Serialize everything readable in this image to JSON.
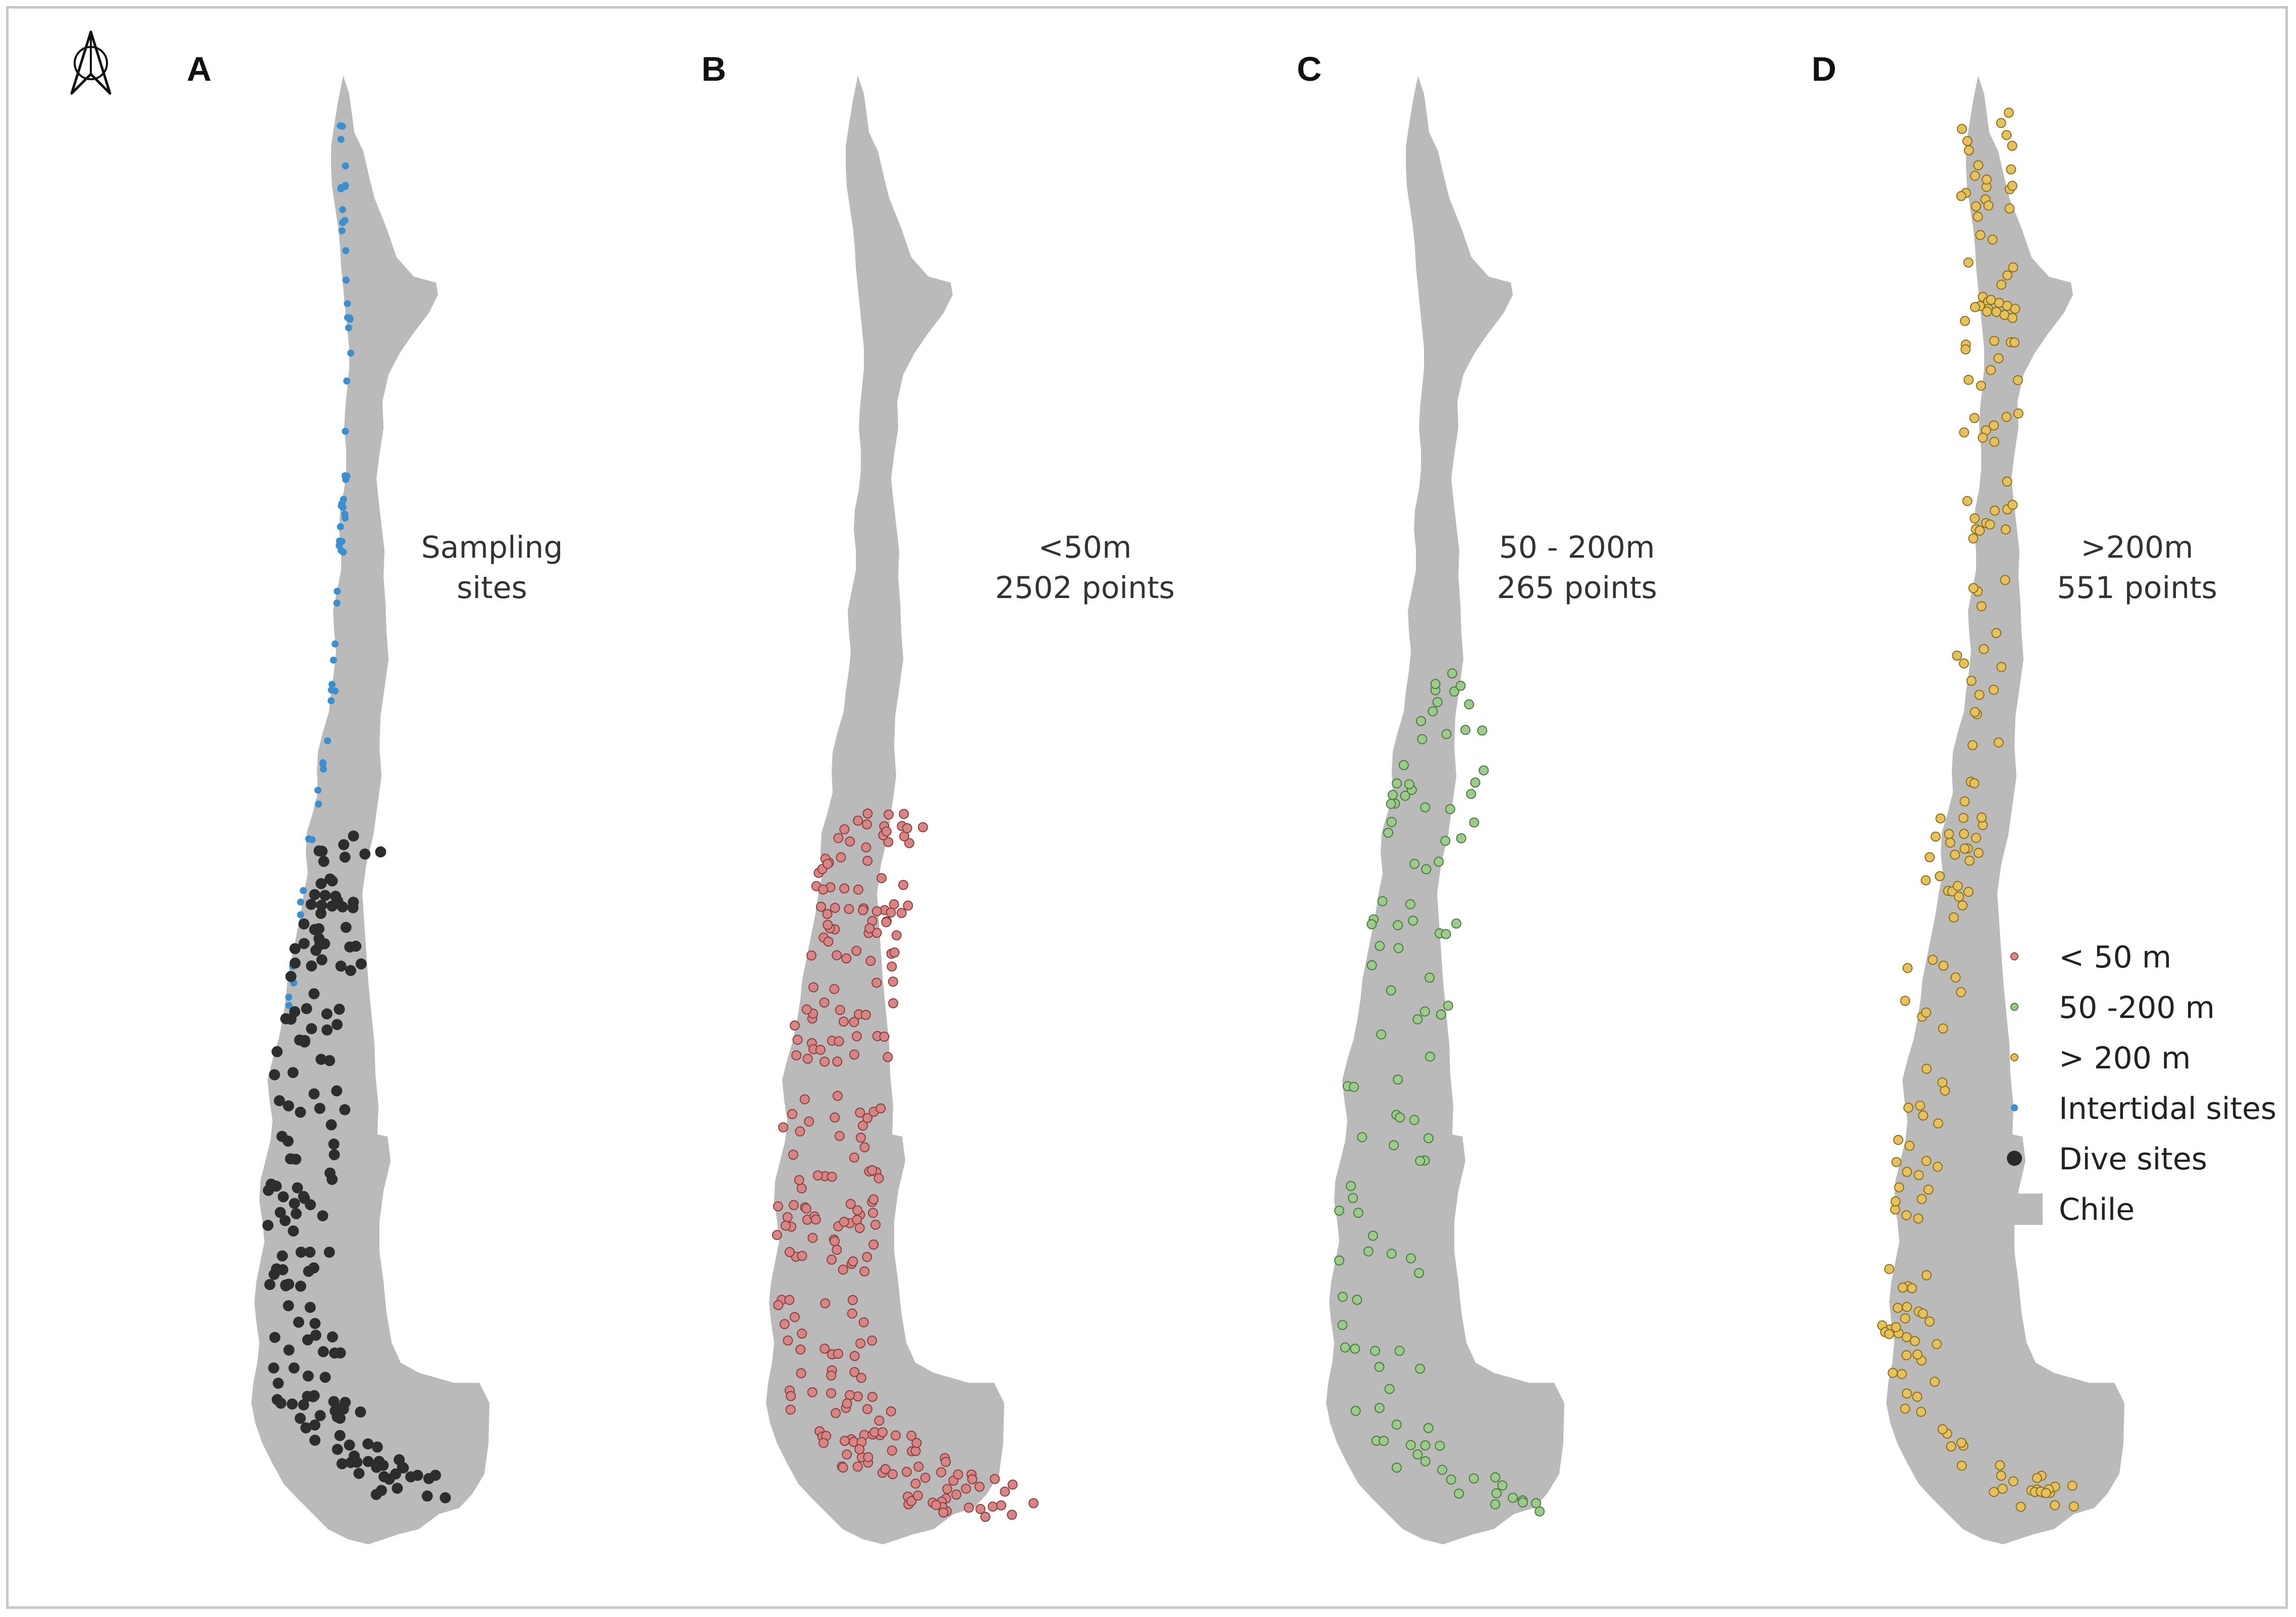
{
  "figure": {
    "north_arrow": "north-arrow-icon",
    "background_color": "#ffffff",
    "land_color": "#bababa"
  },
  "panels": [
    {
      "letter": "A",
      "caption_line1": "Sampling",
      "caption_line2": "sites"
    },
    {
      "letter": "B",
      "caption_line1": "<50m",
      "caption_line2": "2502  points"
    },
    {
      "letter": "C",
      "caption_line1": "50 - 200m",
      "caption_line2": "265  points"
    },
    {
      "letter": "D",
      "caption_line1": ">200m",
      "caption_line2": "551 points"
    }
  ],
  "legend": {
    "items": [
      {
        "label": "< 50 m",
        "symbol": "small-circle",
        "color": "#e08a8a"
      },
      {
        "label": "50 -200 m",
        "symbol": "small-circle",
        "color": "#9dc98a"
      },
      {
        "label": "> 200 m",
        "symbol": "small-circle",
        "color": "#e8c15a"
      },
      {
        "label": "Intertidal sites",
        "symbol": "dot",
        "color": "#3a8fd0"
      },
      {
        "label": "Dive sites",
        "symbol": "large-dot",
        "color": "#2a2a2a"
      },
      {
        "label": "Chile",
        "symbol": "rectangle",
        "color": "#bababa"
      }
    ]
  },
  "series_colors": {
    "shallow": {
      "fill": "#d98585",
      "stroke": "#8a4040"
    },
    "mid": {
      "fill": "#9dcb8c",
      "stroke": "#4d7a40"
    },
    "deep": {
      "fill": "#e6c15c",
      "stroke": "#8c7020"
    },
    "intertidal": {
      "fill": "#3a8fd0"
    },
    "dive": {
      "fill": "#2d2d2d"
    }
  }
}
